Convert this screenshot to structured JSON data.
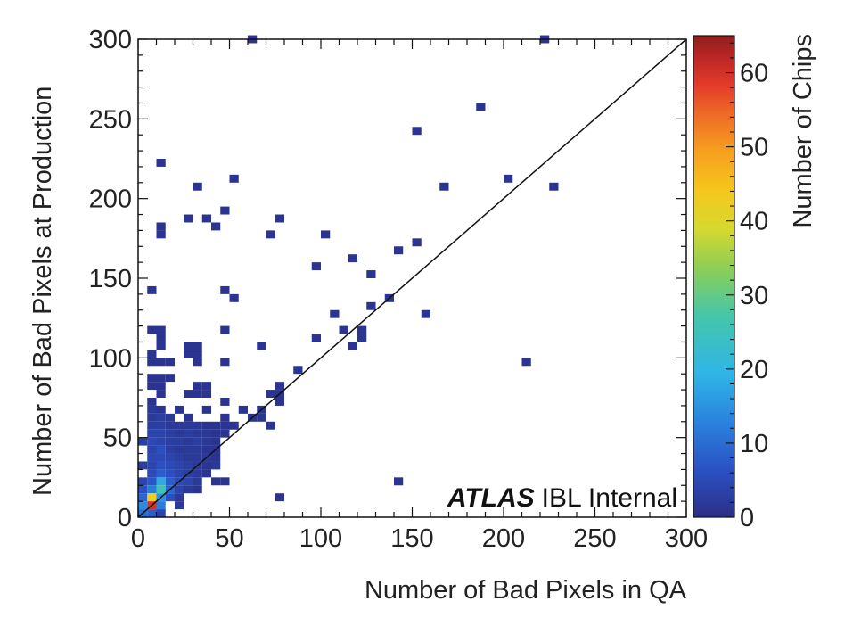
{
  "chart_data": {
    "type": "heatmap",
    "xlabel": "Number of Bad Pixels in QA",
    "ylabel": "Number of Bad Pixels at Production",
    "colorbar_label": "Number of Chips",
    "xlim": [
      0,
      300
    ],
    "ylim": [
      0,
      300
    ],
    "zlim": [
      0,
      65
    ],
    "bin_width": 5,
    "x_ticks": [
      "0",
      "50",
      "100",
      "150",
      "200",
      "250",
      "300"
    ],
    "y_ticks": [
      "0",
      "50",
      "100",
      "150",
      "200",
      "250",
      "300"
    ],
    "z_ticks": [
      "0",
      "10",
      "20",
      "30",
      "40",
      "50",
      "60"
    ],
    "diagonal_line": true,
    "annotation": {
      "bold": "ATLAS",
      "text": "IBL Internal"
    },
    "palette": [
      "#2b2f86",
      "#2b52c5",
      "#2a84de",
      "#2fb6e6",
      "#45c6a8",
      "#8fce54",
      "#d7d92e",
      "#f5c61c",
      "#f79f1e",
      "#ee6826",
      "#e23a2b",
      "#b82424",
      "#8e1e1e"
    ],
    "cells": [
      [
        60,
        300,
        1
      ],
      [
        220,
        300,
        1
      ],
      [
        185,
        255,
        1
      ],
      [
        150,
        240,
        1
      ],
      [
        10,
        220,
        1
      ],
      [
        50,
        210,
        1
      ],
      [
        200,
        210,
        1
      ],
      [
        30,
        205,
        1
      ],
      [
        165,
        205,
        1
      ],
      [
        225,
        205,
        1
      ],
      [
        45,
        190,
        1
      ],
      [
        25,
        185,
        1
      ],
      [
        35,
        185,
        1
      ],
      [
        75,
        185,
        1
      ],
      [
        40,
        180,
        1
      ],
      [
        10,
        180,
        1
      ],
      [
        10,
        175,
        1
      ],
      [
        70,
        175,
        1
      ],
      [
        100,
        175,
        1
      ],
      [
        150,
        170,
        1
      ],
      [
        140,
        165,
        1
      ],
      [
        115,
        160,
        1
      ],
      [
        95,
        155,
        1
      ],
      [
        125,
        150,
        1
      ],
      [
        5,
        140,
        1
      ],
      [
        45,
        140,
        1
      ],
      [
        50,
        135,
        1
      ],
      [
        135,
        135,
        1
      ],
      [
        125,
        130,
        1
      ],
      [
        105,
        125,
        1
      ],
      [
        155,
        125,
        1
      ],
      [
        5,
        115,
        1
      ],
      [
        10,
        115,
        1
      ],
      [
        45,
        115,
        1
      ],
      [
        110,
        115,
        1
      ],
      [
        120,
        115,
        1
      ],
      [
        10,
        110,
        1
      ],
      [
        95,
        110,
        1
      ],
      [
        120,
        110,
        1
      ],
      [
        10,
        105,
        1
      ],
      [
        25,
        105,
        1
      ],
      [
        30,
        105,
        1
      ],
      [
        65,
        105,
        1
      ],
      [
        115,
        105,
        1
      ],
      [
        5,
        100,
        1
      ],
      [
        25,
        100,
        1
      ],
      [
        30,
        100,
        1
      ],
      [
        5,
        95,
        1
      ],
      [
        10,
        95,
        1
      ],
      [
        15,
        95,
        1
      ],
      [
        30,
        95,
        1
      ],
      [
        45,
        95,
        1
      ],
      [
        210,
        95,
        1
      ],
      [
        85,
        90,
        1
      ],
      [
        5,
        85,
        1
      ],
      [
        10,
        85,
        1
      ],
      [
        15,
        85,
        1
      ],
      [
        5,
        80,
        1
      ],
      [
        10,
        80,
        1
      ],
      [
        30,
        80,
        1
      ],
      [
        35,
        80,
        1
      ],
      [
        75,
        80,
        1
      ],
      [
        10,
        75,
        1
      ],
      [
        25,
        75,
        1
      ],
      [
        30,
        75,
        1
      ],
      [
        35,
        75,
        1
      ],
      [
        70,
        75,
        1
      ],
      [
        75,
        75,
        1
      ],
      [
        5,
        70,
        1
      ],
      [
        45,
        70,
        1
      ],
      [
        75,
        70,
        1
      ],
      [
        5,
        65,
        2
      ],
      [
        10,
        65,
        1
      ],
      [
        20,
        65,
        1
      ],
      [
        35,
        65,
        1
      ],
      [
        55,
        65,
        1
      ],
      [
        65,
        65,
        1
      ],
      [
        5,
        60,
        2
      ],
      [
        10,
        60,
        3
      ],
      [
        15,
        60,
        2
      ],
      [
        25,
        60,
        1
      ],
      [
        45,
        60,
        1
      ],
      [
        60,
        60,
        1
      ],
      [
        65,
        60,
        1
      ],
      [
        5,
        55,
        3
      ],
      [
        10,
        55,
        3
      ],
      [
        15,
        55,
        2
      ],
      [
        20,
        55,
        2
      ],
      [
        25,
        55,
        2
      ],
      [
        30,
        55,
        2
      ],
      [
        35,
        55,
        1
      ],
      [
        40,
        55,
        1
      ],
      [
        45,
        55,
        1
      ],
      [
        50,
        55,
        1
      ],
      [
        70,
        55,
        1
      ],
      [
        5,
        50,
        4
      ],
      [
        10,
        50,
        4
      ],
      [
        15,
        50,
        3
      ],
      [
        20,
        50,
        2
      ],
      [
        25,
        50,
        3
      ],
      [
        30,
        50,
        2
      ],
      [
        35,
        50,
        2
      ],
      [
        40,
        50,
        1
      ],
      [
        45,
        50,
        1
      ],
      [
        0,
        45,
        3
      ],
      [
        5,
        45,
        5
      ],
      [
        10,
        45,
        4
      ],
      [
        15,
        45,
        3
      ],
      [
        20,
        45,
        3
      ],
      [
        25,
        45,
        2
      ],
      [
        30,
        45,
        3
      ],
      [
        35,
        45,
        2
      ],
      [
        40,
        45,
        1
      ],
      [
        5,
        40,
        4
      ],
      [
        10,
        40,
        6
      ],
      [
        15,
        40,
        3
      ],
      [
        20,
        40,
        2
      ],
      [
        25,
        40,
        2
      ],
      [
        30,
        40,
        2
      ],
      [
        35,
        40,
        1
      ],
      [
        40,
        40,
        1
      ],
      [
        5,
        35,
        5
      ],
      [
        10,
        35,
        5
      ],
      [
        15,
        35,
        4
      ],
      [
        20,
        35,
        3
      ],
      [
        25,
        35,
        2
      ],
      [
        30,
        35,
        2
      ],
      [
        35,
        35,
        2
      ],
      [
        40,
        35,
        1
      ],
      [
        0,
        30,
        3
      ],
      [
        5,
        30,
        4
      ],
      [
        10,
        30,
        6
      ],
      [
        15,
        30,
        5
      ],
      [
        20,
        30,
        4
      ],
      [
        25,
        30,
        3
      ],
      [
        30,
        30,
        2
      ],
      [
        35,
        30,
        1
      ],
      [
        40,
        30,
        2
      ],
      [
        5,
        25,
        5
      ],
      [
        10,
        25,
        8
      ],
      [
        15,
        25,
        6
      ],
      [
        20,
        25,
        4
      ],
      [
        25,
        25,
        3
      ],
      [
        30,
        25,
        2
      ],
      [
        35,
        25,
        1
      ],
      [
        0,
        20,
        4
      ],
      [
        5,
        20,
        7
      ],
      [
        10,
        20,
        18
      ],
      [
        15,
        20,
        8
      ],
      [
        20,
        20,
        5
      ],
      [
        25,
        20,
        4
      ],
      [
        30,
        20,
        2
      ],
      [
        40,
        20,
        1
      ],
      [
        45,
        20,
        1
      ],
      [
        0,
        15,
        6
      ],
      [
        5,
        15,
        12
      ],
      [
        10,
        15,
        26
      ],
      [
        15,
        15,
        9
      ],
      [
        20,
        15,
        4
      ],
      [
        25,
        15,
        2
      ],
      [
        30,
        15,
        1
      ],
      [
        0,
        10,
        9
      ],
      [
        5,
        10,
        42
      ],
      [
        10,
        10,
        15
      ],
      [
        15,
        10,
        6
      ],
      [
        20,
        10,
        2
      ],
      [
        0,
        5,
        14
      ],
      [
        5,
        5,
        60
      ],
      [
        10,
        5,
        12
      ],
      [
        20,
        5,
        2
      ],
      [
        0,
        0,
        10
      ],
      [
        5,
        0,
        8
      ],
      [
        10,
        0,
        4
      ],
      [
        140,
        20,
        1
      ],
      [
        75,
        10,
        1
      ]
    ]
  }
}
